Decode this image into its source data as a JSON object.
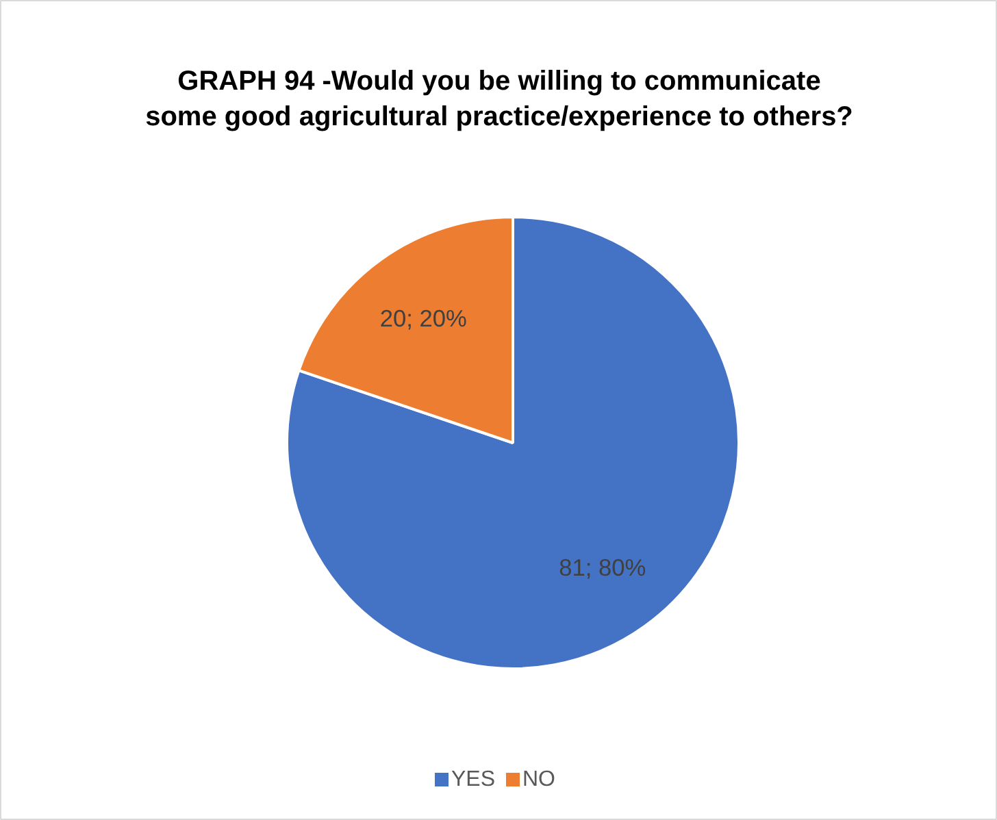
{
  "chart_data": {
    "type": "pie",
    "title": "GRAPH 94 -Would you be willing to communicate\nsome good agricultural practice/experience to others?",
    "categories": [
      "YES",
      "NO"
    ],
    "values": [
      81,
      20
    ],
    "colors": [
      "#4472c4",
      "#ed7d31"
    ],
    "value_labels": [
      "81; 80%",
      "20; 20%"
    ],
    "legend": "bottom"
  }
}
